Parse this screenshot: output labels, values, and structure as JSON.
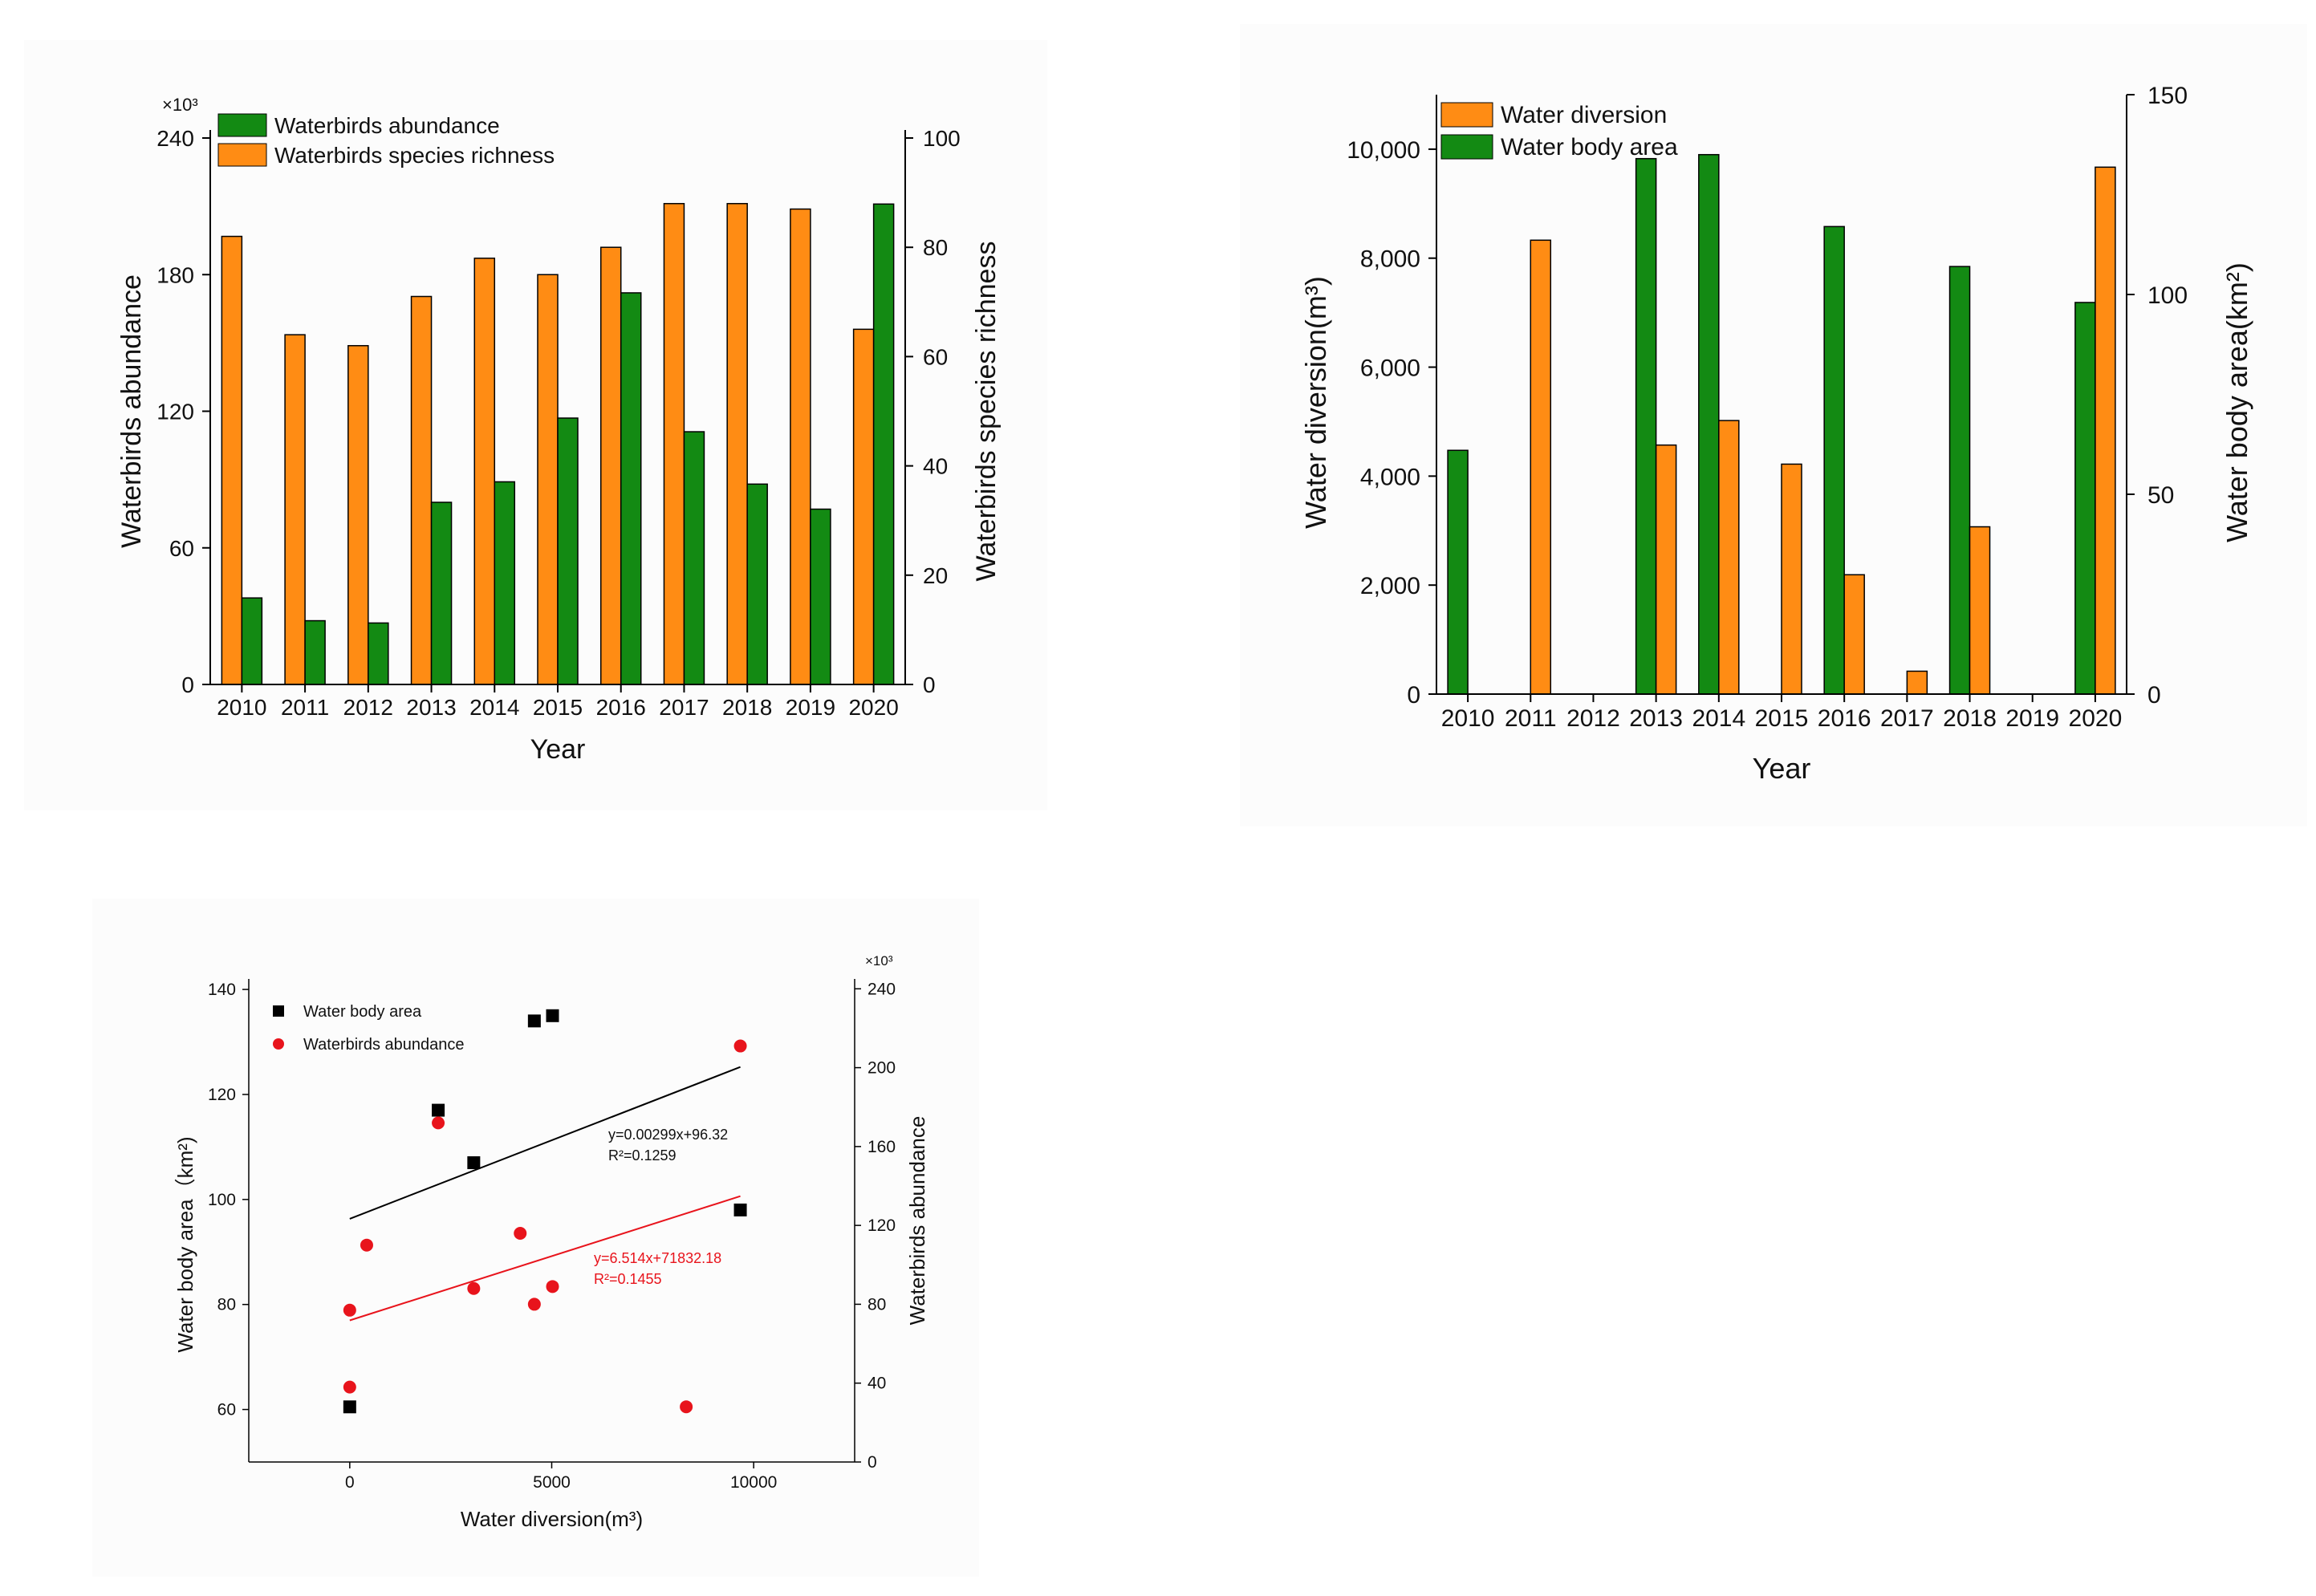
{
  "chart_data": [
    {
      "type": "bar",
      "categories": [
        "2010",
        "2011",
        "2012",
        "2013",
        "2014",
        "2015",
        "2016",
        "2017",
        "2018",
        "2019",
        "2020"
      ],
      "xlabel": "Year",
      "ylabel_left": "Waterbirds abundance",
      "ylabel_right": "Waterbirds species richness",
      "left_axis_multiplier": "×10³",
      "ylim_left": [
        0,
        240
      ],
      "yticks_left": [
        0,
        60,
        120,
        180,
        240
      ],
      "ylim_right": [
        0,
        100
      ],
      "yticks_right": [
        0,
        20,
        40,
        60,
        80,
        100
      ],
      "grid": false,
      "legend_position": "top-left",
      "series": [
        {
          "name": "Waterbirds abundance",
          "axis": "left",
          "color": "#138a13",
          "values": [
            38,
            28,
            27,
            80,
            89,
            117,
            172,
            111,
            88,
            77,
            211
          ]
        },
        {
          "name": "Waterbirds species richness",
          "axis": "right",
          "color": "#ff8c14",
          "values": [
            82,
            64,
            62,
            71,
            78,
            75,
            80,
            88,
            88,
            87,
            65
          ]
        }
      ]
    },
    {
      "type": "bar",
      "categories": [
        "2010",
        "2011",
        "2012",
        "2013",
        "2014",
        "2015",
        "2016",
        "2017",
        "2018",
        "2019",
        "2020"
      ],
      "xlabel": "Year",
      "ylabel_left": "Water diversion(m³)",
      "ylabel_right": "Water body area(km²)",
      "ylim_left": [
        0,
        11000
      ],
      "yticks_left": [
        0,
        2000,
        4000,
        6000,
        8000,
        10000
      ],
      "ytick_labels_left": [
        "0",
        "2,000",
        "4,000",
        "6,000",
        "8,000",
        "10,000"
      ],
      "ylim_right": [
        0,
        150
      ],
      "yticks_right": [
        0,
        50,
        100,
        150
      ],
      "grid": false,
      "legend_position": "top-left",
      "series": [
        {
          "name": "Water diversion",
          "axis": "left",
          "color": "#ff8c14",
          "values": [
            0,
            8330,
            0,
            4570,
            5020,
            4220,
            2190,
            420,
            3070,
            0,
            9670
          ]
        },
        {
          "name": "Water body area",
          "axis": "right",
          "color": "#138a13",
          "values": [
            61,
            0,
            0,
            134,
            135,
            0,
            117,
            0,
            107,
            0,
            98
          ]
        }
      ]
    },
    {
      "type": "scatter",
      "xlabel": "Water diversion(m³)",
      "ylabel_left": "Water body area（km²)",
      "ylabel_right": "Waterbirds abundance",
      "right_axis_multiplier": "×10³",
      "xlim": [
        -2500,
        12500
      ],
      "xticks": [
        0,
        5000,
        10000
      ],
      "ylim_left": [
        50,
        142
      ],
      "yticks_left": [
        60,
        80,
        100,
        120,
        140
      ],
      "ylim_right": [
        0,
        245
      ],
      "yticks_right": [
        0,
        40,
        80,
        120,
        160,
        200,
        240
      ],
      "grid": false,
      "legend_position": "top-left",
      "series": [
        {
          "name": "Water body area",
          "axis": "left",
          "color": "#000000",
          "marker": "square",
          "points": [
            [
              0,
              60.5
            ],
            [
              2190,
              117
            ],
            [
              3070,
              107
            ],
            [
              4570,
              134
            ],
            [
              5020,
              135
            ],
            [
              9670,
              98
            ]
          ]
        },
        {
          "name": "Waterbirds abundance",
          "axis": "right",
          "color": "#e8141c",
          "marker": "circle",
          "points": [
            [
              0,
              38
            ],
            [
              0,
              77
            ],
            [
              420,
              110
            ],
            [
              2190,
              172
            ],
            [
              3070,
              88
            ],
            [
              4220,
              116
            ],
            [
              4570,
              80
            ],
            [
              5020,
              89
            ],
            [
              8330,
              28
            ],
            [
              9670,
              211
            ]
          ]
        }
      ],
      "fits": [
        {
          "series": "Water body area",
          "axis": "left",
          "color": "#000000",
          "slope": 0.00299,
          "intercept": 96.32,
          "x_range": [
            0,
            9670
          ],
          "equation": "y=0.00299x+96.32",
          "r2": "R²=0.1259"
        },
        {
          "series": "Waterbirds abundance",
          "axis": "right",
          "color": "#e8141c",
          "slope": 6.514,
          "intercept": 71832.18,
          "x_range": [
            0,
            9670
          ],
          "equation": "y=6.514x+71832.18",
          "r2": "R²=0.1455"
        }
      ]
    }
  ]
}
